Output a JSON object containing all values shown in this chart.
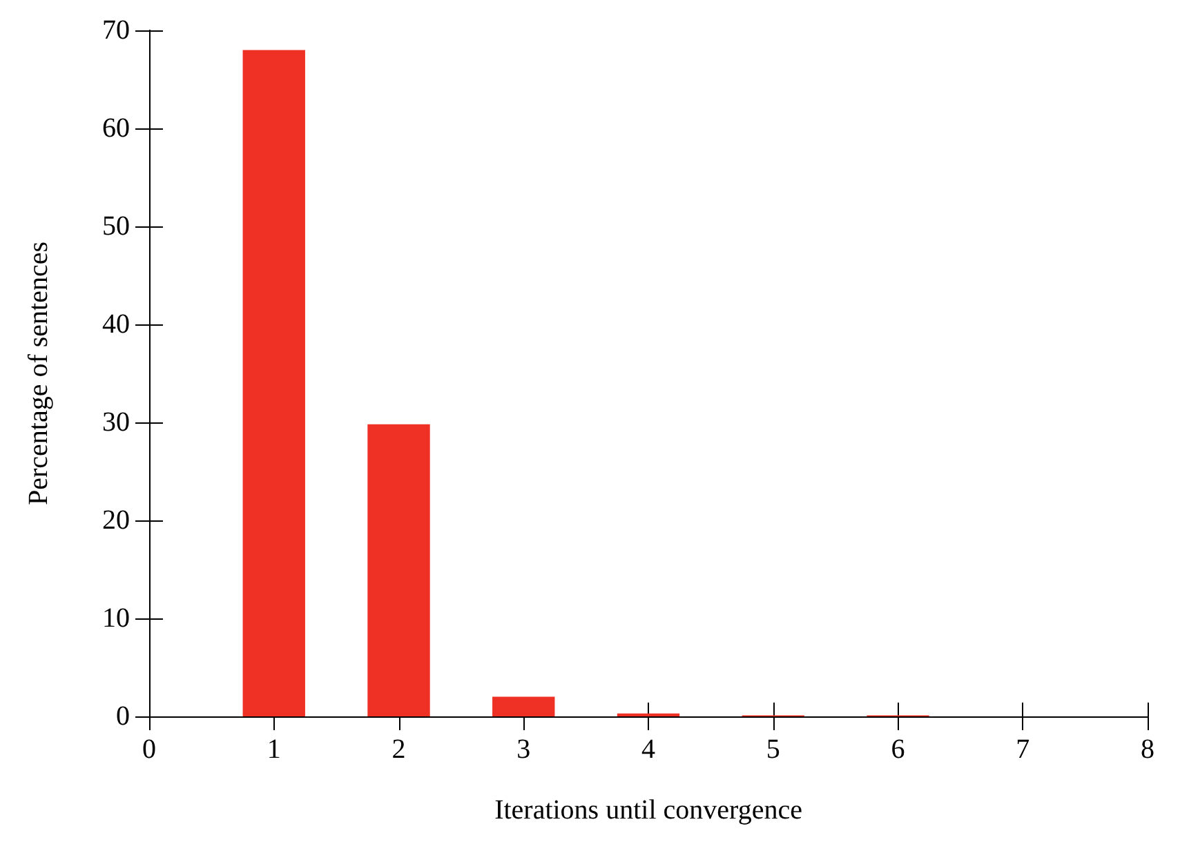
{
  "chart_data": {
    "type": "bar",
    "xlabel": "Iterations until convergence",
    "ylabel": "Percentage of sentences",
    "x": [
      1,
      2,
      3,
      4,
      5,
      6
    ],
    "values": [
      68,
      29.8,
      2,
      0.3,
      0.1,
      0.1
    ],
    "color": "#ee3124",
    "xlim": [
      0,
      8
    ],
    "xticks": [
      0,
      1,
      2,
      3,
      4,
      5,
      6,
      7,
      8
    ],
    "ylim": [
      0,
      70
    ],
    "yticks": [
      0,
      10,
      20,
      30,
      40,
      50,
      60,
      70
    ]
  }
}
